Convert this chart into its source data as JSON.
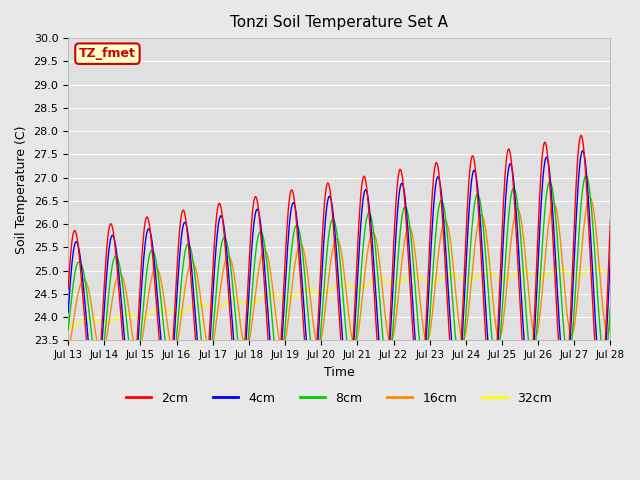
{
  "title": "Tonzi Soil Temperature Set A",
  "xlabel": "Time",
  "ylabel": "Soil Temperature (C)",
  "ylim": [
    23.5,
    30.0
  ],
  "yticks": [
    23.5,
    24.0,
    24.5,
    25.0,
    25.5,
    26.0,
    26.5,
    27.0,
    27.5,
    28.0,
    28.5,
    29.0,
    29.5,
    30.0
  ],
  "colors": {
    "2cm": "#ff0000",
    "4cm": "#0000ff",
    "8cm": "#00cc00",
    "16cm": "#ff8800",
    "32cm": "#ffff00"
  },
  "legend_label": "TZ_fmet",
  "legend_box_facecolor": "#ffffcc",
  "legend_box_edgecolor": "#cc0000",
  "legend_text_color": "#cc0000",
  "background_color": "#e8e8e8",
  "plot_bg_color": "#e0e0e0",
  "grid_color": "#ffffff",
  "xtick_labels": [
    "Jul 13",
    "Jul 14",
    "Jul 15",
    "Jul 16",
    "Jul 17",
    "Jul 18",
    "Jul 19",
    "Jul 20",
    "Jul 21",
    "Jul 22",
    "Jul 23",
    "Jul 24",
    "Jul 25",
    "Jul 26",
    "Jul 27",
    "Jul 28"
  ],
  "n_days": 15,
  "points_per_day": 48
}
